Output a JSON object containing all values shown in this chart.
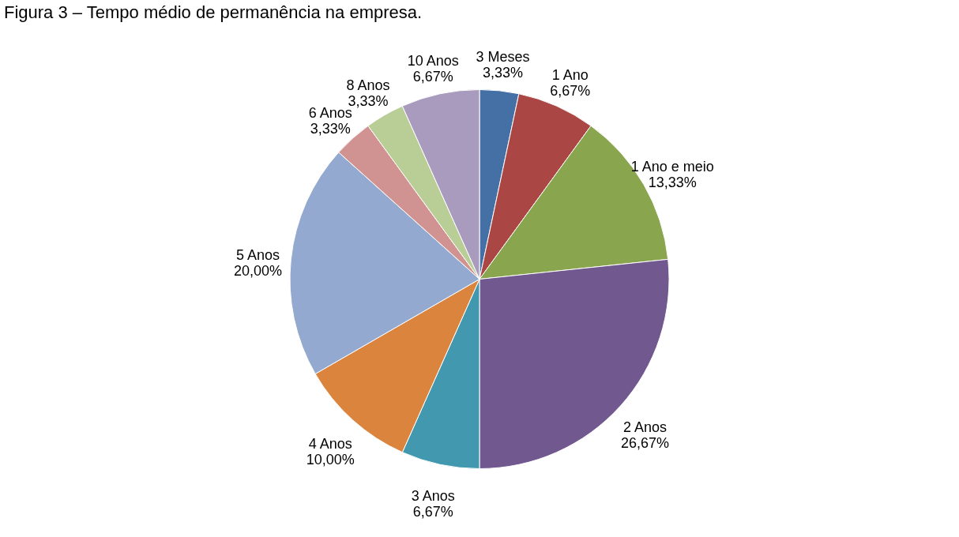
{
  "chart_data": {
    "type": "pie",
    "title": "Figura 3 – Tempo médio de permanência na empresa.",
    "categories": [
      "3 Meses",
      "1 Ano",
      "1 Ano e meio",
      "2 Anos",
      "3 Anos",
      "4 Anos",
      "5 Anos",
      "6 Anos",
      "8 Anos",
      "10 Anos"
    ],
    "values": [
      3.33,
      6.67,
      13.33,
      26.67,
      6.67,
      10.0,
      20.0,
      3.33,
      3.33,
      6.67
    ],
    "colors": [
      "#4470a5",
      "#aa4643",
      "#89a54e",
      "#71588f",
      "#4198af",
      "#db843d",
      "#93a9cf",
      "#d19392",
      "#b9cd96",
      "#a99bbd"
    ],
    "value_labels": [
      "3,33%",
      "6,67%",
      "13,33%",
      "26,67%",
      "6,67%",
      "10,00%",
      "20,00%",
      "3,33%",
      "3,33%",
      "6,67%"
    ],
    "legend": false
  }
}
